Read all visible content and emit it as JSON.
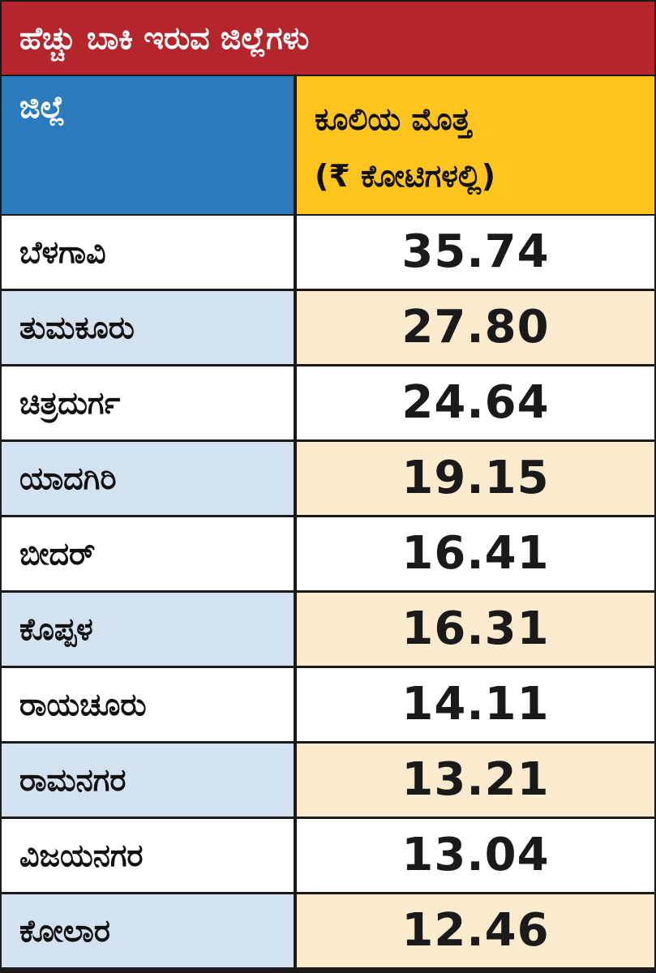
{
  "title": "ಹೆಚ್ಚು ಬಾಕಿ ಇರುವ ಜಿಲ್ಲೆಗಳು",
  "headers": {
    "district": "ಜಿಲ್ಲೆ",
    "amount_line1": "ಕೂಲಿಯ ಮೊತ್ತ",
    "amount_line2": "(₹ ಕೋಟಿಗಳಲ್ಲಿ)"
  },
  "colors": {
    "title_bg": "#b5262c",
    "district_header_bg": "#2a7bbd",
    "amount_header_bg": "#ffc51c",
    "row_alt_district_bg": "#d4e1ee",
    "row_alt_amount_bg": "#fdebd0"
  },
  "chart_data": {
    "type": "table",
    "title": "ಹೆಚ್ಚು ಬಾಕಿ ಇರುವ ಜಿಲ್ಲೆಗಳು",
    "columns": [
      "ಜಿಲ್ಲೆ",
      "ಕೂಲಿಯ ಮೊತ್ತ (₹ ಕೋಟಿಗಳಲ್ಲಿ)"
    ],
    "rows": [
      {
        "district": "ಬೆಳಗಾವಿ",
        "amount": "35.74"
      },
      {
        "district": "ತುಮಕೂರು",
        "amount": "27.80"
      },
      {
        "district": "ಚಿತ್ರದುರ್ಗ",
        "amount": "24.64"
      },
      {
        "district": "ಯಾದಗಿರಿ",
        "amount": "19.15"
      },
      {
        "district": "ಬೀದರ್",
        "amount": "16.41"
      },
      {
        "district": "ಕೊಪ್ಪಳ",
        "amount": "16.31"
      },
      {
        "district": "ರಾಯಚೂರು",
        "amount": "14.11"
      },
      {
        "district": "ರಾಮನಗರ",
        "amount": "13.21"
      },
      {
        "district": "ವಿಜಯನಗರ",
        "amount": "13.04"
      },
      {
        "district": "ಕೋಲಾರ",
        "amount": "12.46"
      }
    ]
  }
}
